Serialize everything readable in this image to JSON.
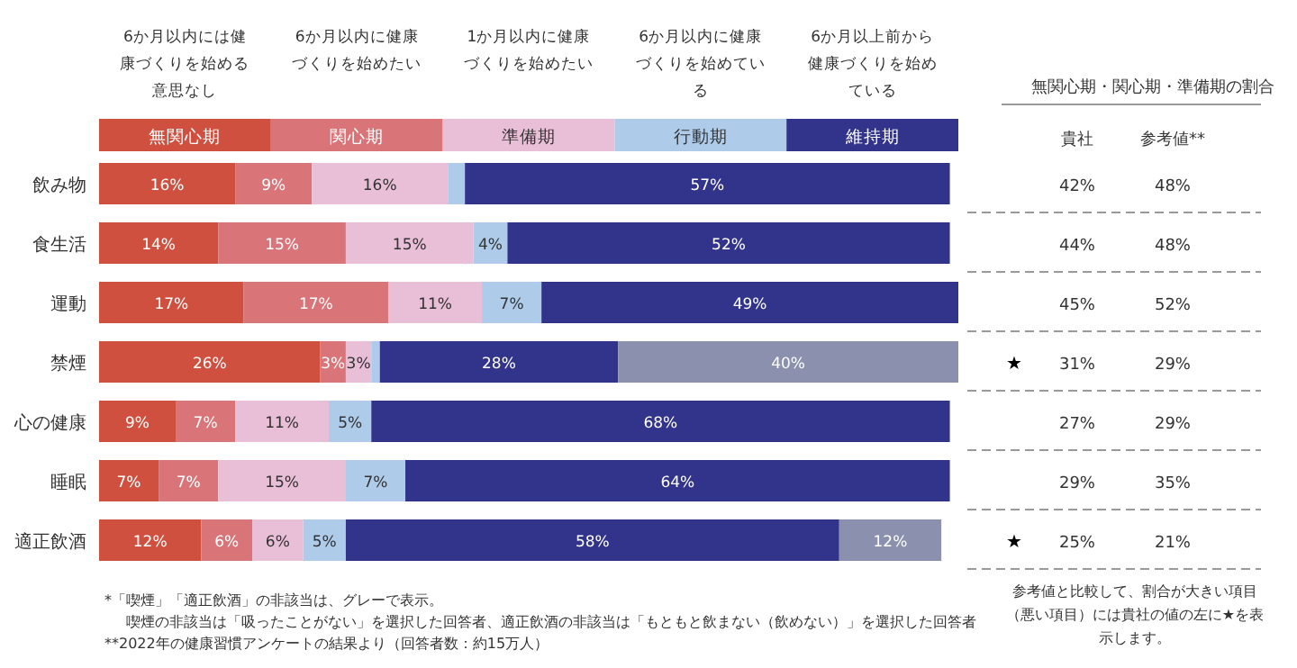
{
  "chart_data": [
    {
      "type": "bar",
      "orientation": "horizontal",
      "stacked": true,
      "legend": "top",
      "categories": [
        "飲み物",
        "食生活",
        "運動",
        "禁煙",
        "心の健康",
        "睡眠",
        "適正飲酒"
      ],
      "series": [
        {
          "name": "無関心期",
          "color": "#d05040",
          "values": [
            16,
            14,
            17,
            26,
            9,
            7,
            12
          ],
          "value_labels": [
            "16%",
            "14%",
            "17%",
            "26%",
            "9%",
            "7%",
            "12%"
          ]
        },
        {
          "name": "関心期",
          "color": "#d97579",
          "values": [
            9,
            15,
            17,
            3,
            7,
            7,
            6
          ],
          "value_labels": [
            "9%",
            "15%",
            "17%",
            "3%",
            "7%",
            "7%",
            "6%"
          ]
        },
        {
          "name": "準備期",
          "color": "#e9bed7",
          "values": [
            16,
            15,
            11,
            3,
            11,
            15,
            6
          ],
          "value_labels": [
            "16%",
            "15%",
            "11%",
            "3%",
            "11%",
            "15%",
            "6%"
          ]
        },
        {
          "name": "行動期",
          "color": "#aecbea",
          "values": [
            2,
            4,
            7,
            1,
            5,
            7,
            5
          ],
          "value_labels": [
            null,
            "4%",
            "7%",
            null,
            "5%",
            "7%",
            "5%"
          ]
        },
        {
          "name": "維持期",
          "color": "#32338b",
          "values": [
            57,
            52,
            49,
            28,
            68,
            64,
            58
          ],
          "value_labels": [
            "57%",
            "52%",
            "49%",
            "28%",
            "68%",
            "64%",
            "58%"
          ]
        },
        {
          "color": "#8a90ad",
          "values": [
            null,
            null,
            null,
            40,
            null,
            null,
            12
          ],
          "value_labels": [
            null,
            null,
            null,
            "40%",
            null,
            null,
            "12%"
          ]
        }
      ],
      "annotations": [
        "6か月以内には健康づくりを始める意思なし",
        "6か月以内に健康づくりを始めたい",
        "1か月以内に健康づくりを始めたい",
        "6か月以内に健康づくりを始めている",
        "6か月以上前から健康づくりを始めている",
        "*「喫煙」「適正飲酒」の非該当は、グレーで表示。",
        "喫煙の非該当は「吸ったことがない」を選択した回答者、適正飲酒の非該当は「もともと飲まない（飲めない）」を選択した回答者",
        "**2022年の健康習慣アンケートの結果より（回答者数：約15万人）"
      ]
    },
    {
      "type": "heatmap",
      "title": "無関心期・関心期・準備期の割合",
      "categories": [
        "貴社",
        "参考値**"
      ],
      "y_categories": [
        null,
        null,
        null,
        null,
        null,
        null,
        null
      ],
      "cells": [
        [
          42,
          48
        ],
        [
          44,
          48
        ],
        [
          45,
          52
        ],
        [
          31,
          29
        ],
        [
          27,
          29
        ],
        [
          29,
          35
        ],
        [
          25,
          21
        ]
      ],
      "cell_labels": [
        [
          "42%",
          "48%"
        ],
        [
          "44%",
          "48%"
        ],
        [
          "45%",
          "52%"
        ],
        [
          "31%",
          "29%"
        ],
        [
          "27%",
          "29%"
        ],
        [
          "29%",
          "35%"
        ],
        [
          "25%",
          "21%"
        ]
      ],
      "annotations": [
        "★",
        "★",
        "参考値と比較して、割合が大きい項目（悪い項目）には貴社の値の左に★を表示します。"
      ]
    }
  ]
}
